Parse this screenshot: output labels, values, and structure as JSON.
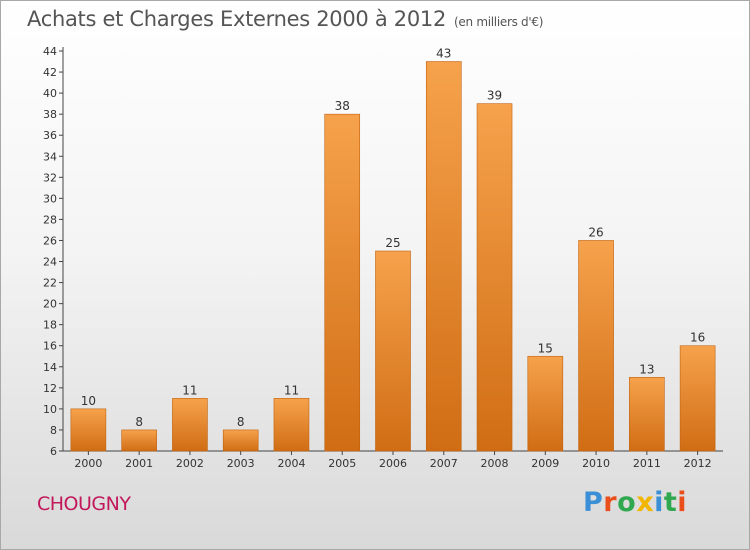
{
  "title": "Achats et Charges Externes 2000 à 2012",
  "unit": "(en milliers d'€)",
  "commune": "CHOUGNY",
  "logo": {
    "letters": [
      "P",
      "r",
      "o",
      "x",
      "i",
      "t",
      "i"
    ],
    "colors": [
      "#3a8fd6",
      "#e94e1b",
      "#2fa84f",
      "#f2b600",
      "#3a8fd6",
      "#2fa84f",
      "#e94e1b"
    ]
  },
  "chart_data": {
    "type": "bar",
    "title": "Achats et Charges Externes 2000 à 2012",
    "subtitle": "(en milliers d'€)",
    "categories": [
      "2000",
      "2001",
      "2002",
      "2003",
      "2004",
      "2005",
      "2006",
      "2007",
      "2008",
      "2009",
      "2010",
      "2011",
      "2012"
    ],
    "values": [
      10,
      8,
      11,
      8,
      11,
      38,
      25,
      43,
      39,
      15,
      26,
      13,
      16
    ],
    "ylim": [
      6,
      44
    ],
    "yticks": [
      6,
      8,
      10,
      12,
      14,
      16,
      18,
      20,
      22,
      24,
      26,
      28,
      30,
      32,
      34,
      36,
      38,
      40,
      42,
      44
    ],
    "grid": false,
    "bar_color_top": "#f6a24c",
    "bar_color_bottom": "#d06d14",
    "xlabel": "",
    "ylabel": ""
  }
}
